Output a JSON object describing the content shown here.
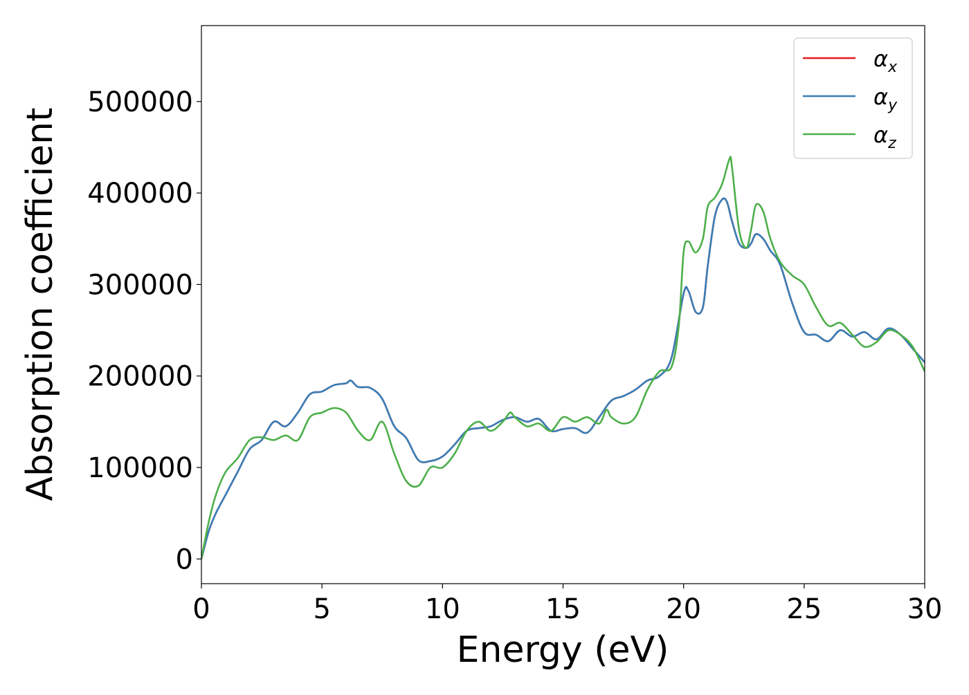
{
  "chart_data": {
    "type": "line",
    "title": "",
    "xlabel": "Energy (eV)",
    "ylabel": "Absorption coefficient",
    "xlim": [
      0,
      30
    ],
    "ylim": [
      -27000,
      583000
    ],
    "xticks": [
      0,
      5,
      10,
      15,
      20,
      25,
      30
    ],
    "yticks": [
      0,
      100000,
      200000,
      300000,
      400000,
      500000
    ],
    "grid": false,
    "legend_position": "top-right",
    "legend": [
      {
        "symbol": "α",
        "subscript": "x",
        "color": "#e41a1c"
      },
      {
        "symbol": "α",
        "subscript": "y",
        "color": "#377eb8"
      },
      {
        "symbol": "α",
        "subscript": "z",
        "color": "#4daf4a"
      }
    ],
    "series": [
      {
        "name": "α_x",
        "color": "#e41a1c",
        "x": [
          0,
          0.3,
          0.6,
          1.0,
          1.5,
          2.0,
          2.5,
          3.0,
          3.5,
          4.0,
          4.5,
          5.0,
          5.5,
          6.0,
          6.2,
          6.5,
          7.0,
          7.5,
          8.0,
          8.5,
          9.0,
          9.5,
          10.0,
          10.5,
          11.0,
          11.5,
          12.0,
          12.5,
          13.0,
          13.5,
          14.0,
          14.5,
          15.0,
          15.5,
          16.0,
          16.5,
          17.0,
          17.5,
          18.0,
          18.5,
          19.0,
          19.5,
          20.0,
          20.2,
          20.5,
          20.8,
          21.0,
          21.3,
          21.6,
          21.8,
          22.0,
          22.3,
          22.6,
          22.8,
          23.0,
          23.3,
          23.6,
          24.0,
          24.5,
          25.0,
          25.5,
          26.0,
          26.5,
          27.0,
          27.5,
          28.0,
          28.5,
          29.0,
          29.5,
          30.0
        ],
        "y": [
          0,
          30000,
          50000,
          70000,
          95000,
          120000,
          130000,
          150000,
          145000,
          160000,
          180000,
          183000,
          190000,
          192000,
          195000,
          188000,
          187000,
          175000,
          145000,
          132000,
          108000,
          107000,
          112000,
          125000,
          140000,
          143000,
          145000,
          152000,
          155000,
          150000,
          153000,
          140000,
          142000,
          143000,
          138000,
          155000,
          173000,
          178000,
          185000,
          195000,
          200000,
          220000,
          290000,
          293000,
          270000,
          275000,
          320000,
          375000,
          393000,
          390000,
          370000,
          345000,
          340000,
          345000,
          355000,
          350000,
          337000,
          322000,
          280000,
          248000,
          245000,
          238000,
          250000,
          243000,
          248000,
          240000,
          252000,
          245000,
          230000,
          215000
        ]
      },
      {
        "name": "α_y",
        "color": "#377eb8",
        "x": [
          0,
          0.3,
          0.6,
          1.0,
          1.5,
          2.0,
          2.5,
          3.0,
          3.5,
          4.0,
          4.5,
          5.0,
          5.5,
          6.0,
          6.2,
          6.5,
          7.0,
          7.5,
          8.0,
          8.5,
          9.0,
          9.5,
          10.0,
          10.5,
          11.0,
          11.5,
          12.0,
          12.5,
          13.0,
          13.5,
          14.0,
          14.5,
          15.0,
          15.5,
          16.0,
          16.5,
          17.0,
          17.5,
          18.0,
          18.5,
          19.0,
          19.5,
          20.0,
          20.2,
          20.5,
          20.8,
          21.0,
          21.3,
          21.6,
          21.8,
          22.0,
          22.3,
          22.6,
          22.8,
          23.0,
          23.3,
          23.6,
          24.0,
          24.5,
          25.0,
          25.5,
          26.0,
          26.5,
          27.0,
          27.5,
          28.0,
          28.5,
          29.0,
          29.5,
          30.0
        ],
        "y": [
          0,
          30000,
          50000,
          70000,
          95000,
          120000,
          130000,
          150000,
          145000,
          160000,
          180000,
          183000,
          190000,
          192000,
          195000,
          188000,
          187000,
          175000,
          145000,
          132000,
          108000,
          107000,
          112000,
          125000,
          140000,
          143000,
          145000,
          152000,
          155000,
          150000,
          153000,
          140000,
          142000,
          143000,
          138000,
          155000,
          173000,
          178000,
          185000,
          195000,
          200000,
          220000,
          290000,
          293000,
          270000,
          275000,
          320000,
          375000,
          393000,
          390000,
          370000,
          345000,
          340000,
          345000,
          355000,
          350000,
          337000,
          322000,
          280000,
          248000,
          245000,
          238000,
          250000,
          243000,
          248000,
          240000,
          252000,
          245000,
          230000,
          215000
        ]
      },
      {
        "name": "α_z",
        "color": "#4daf4a",
        "x": [
          0,
          0.3,
          0.6,
          1.0,
          1.5,
          2.0,
          2.5,
          3.0,
          3.5,
          4.0,
          4.5,
          5.0,
          5.5,
          6.0,
          6.5,
          7.0,
          7.5,
          8.0,
          8.5,
          9.0,
          9.5,
          10.0,
          10.5,
          11.0,
          11.5,
          12.0,
          12.5,
          12.8,
          13.0,
          13.5,
          14.0,
          14.5,
          15.0,
          15.5,
          16.0,
          16.5,
          16.8,
          17.0,
          17.5,
          18.0,
          18.5,
          19.0,
          19.5,
          19.8,
          20.0,
          20.2,
          20.5,
          20.8,
          21.0,
          21.3,
          21.6,
          21.9,
          22.0,
          22.3,
          22.6,
          22.8,
          23.0,
          23.3,
          23.6,
          24.0,
          24.5,
          25.0,
          25.5,
          26.0,
          26.5,
          27.0,
          27.5,
          28.0,
          28.5,
          29.0,
          29.5,
          30.0
        ],
        "y": [
          0,
          40000,
          70000,
          95000,
          110000,
          130000,
          133000,
          130000,
          135000,
          130000,
          155000,
          160000,
          165000,
          160000,
          140000,
          130000,
          150000,
          115000,
          85000,
          80000,
          100000,
          100000,
          115000,
          140000,
          150000,
          140000,
          150000,
          160000,
          155000,
          145000,
          148000,
          140000,
          155000,
          150000,
          155000,
          148000,
          163000,
          155000,
          148000,
          155000,
          185000,
          205000,
          210000,
          255000,
          335000,
          347000,
          335000,
          350000,
          385000,
          395000,
          410000,
          437000,
          430000,
          360000,
          340000,
          360000,
          387000,
          380000,
          350000,
          325000,
          310000,
          300000,
          275000,
          255000,
          258000,
          245000,
          232000,
          237000,
          250000,
          245000,
          232000,
          205000
        ]
      }
    ]
  }
}
